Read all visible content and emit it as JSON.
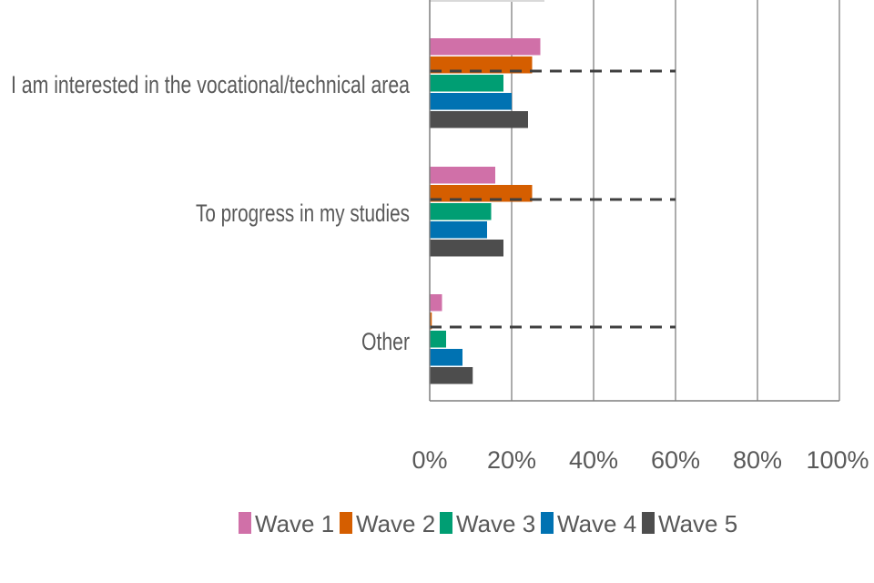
{
  "chart_data": {
    "type": "bar",
    "orientation": "horizontal",
    "categories": [
      "I am interested in the vocational/technical area",
      "To progress in my studies",
      "Other"
    ],
    "series": [
      {
        "name": "Wave 1",
        "color": "#d070a8",
        "values": [
          27,
          16,
          3
        ]
      },
      {
        "name": "Wave 2",
        "color": "#d55e00",
        "values": [
          25,
          25,
          0.5
        ]
      },
      {
        "name": "Wave 3",
        "color": "#009e73",
        "values": [
          18,
          15,
          4
        ]
      },
      {
        "name": "Wave 4",
        "color": "#0072b2",
        "values": [
          20,
          14,
          8
        ]
      },
      {
        "name": "Wave 5",
        "color": "#4d4d4d",
        "values": [
          24,
          18,
          10.5
        ]
      }
    ],
    "reference_line": {
      "value": 60,
      "style": "dashed"
    },
    "xlim": [
      0,
      100
    ],
    "xticks": [
      "0%",
      "20%",
      "40%",
      "60%",
      "80%",
      "100%"
    ],
    "grid": true,
    "legend_position": "bottom",
    "title": "",
    "xlabel": "",
    "ylabel": "",
    "partial_top_bar": {
      "value": 28,
      "color": "#d9d9d9"
    }
  }
}
